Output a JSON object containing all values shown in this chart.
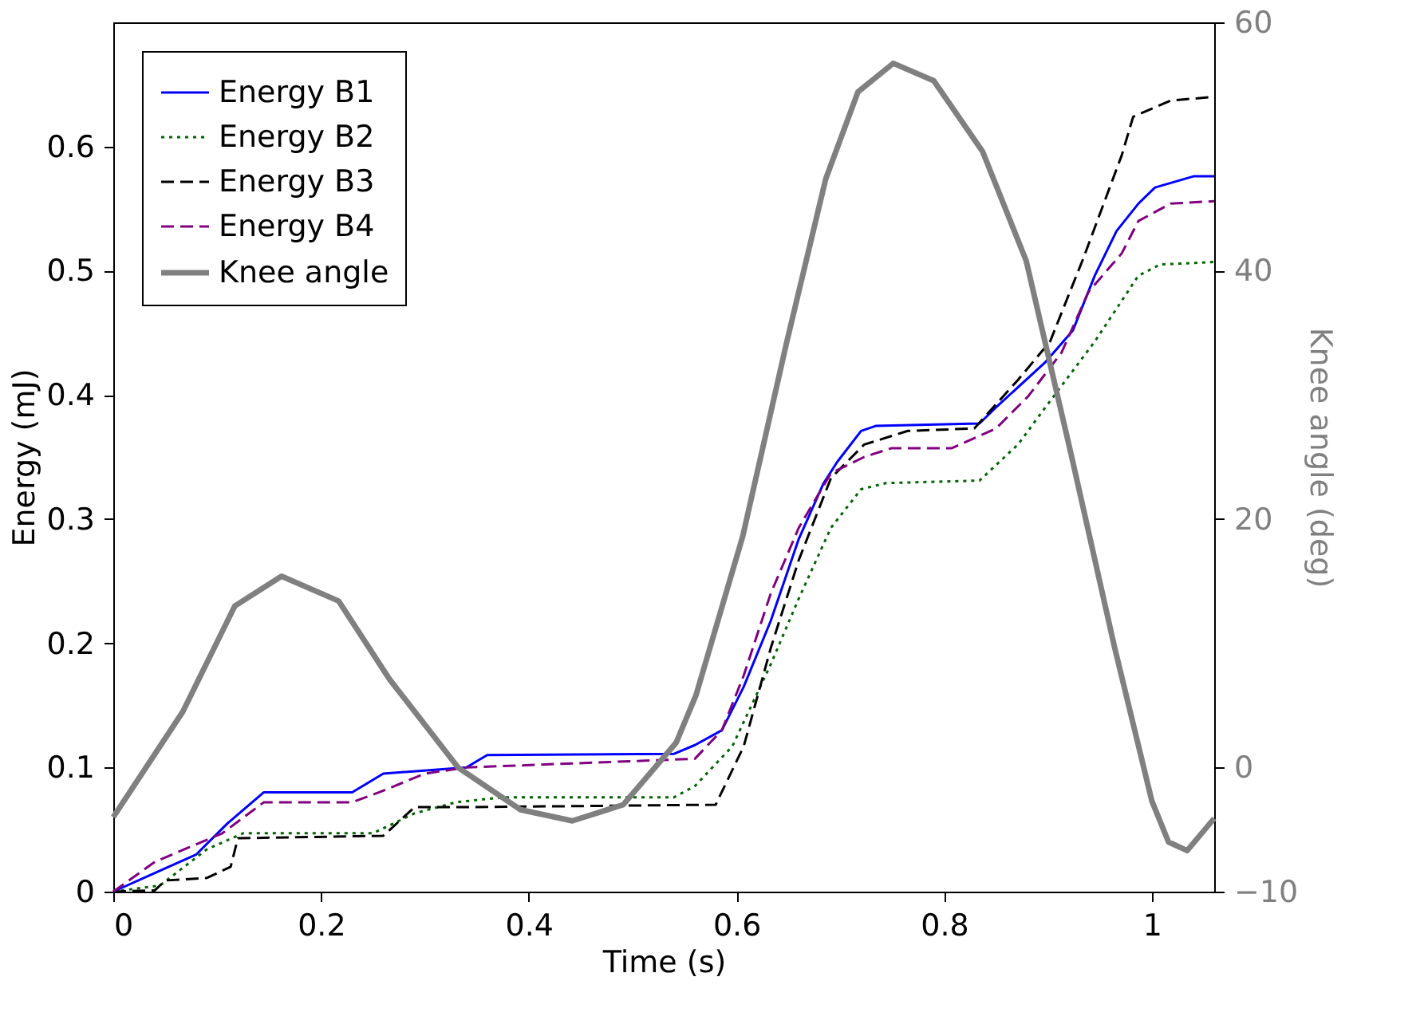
{
  "chart_data": {
    "type": "line",
    "xlabel": "Time (s)",
    "ylabel": "Energy (mJ)",
    "y2label": "Knee angle (deg)",
    "xlim": [
      0,
      1.06
    ],
    "xticks": [
      0,
      0.2,
      0.4,
      0.6,
      0.8,
      1
    ],
    "ylim": [
      0,
      0.7
    ],
    "yticks": [
      0,
      0.1,
      0.2,
      0.3,
      0.4,
      0.5,
      0.6
    ],
    "y2lim": [
      -10,
      60
    ],
    "y2ticks": [
      -10,
      0,
      20,
      40,
      60
    ],
    "grid": false,
    "legend": "top left",
    "marker": "none",
    "series": [
      {
        "name": "Energy B1",
        "color": "#0000ff",
        "line_style": "solid",
        "x": [
          0,
          0.04,
          0.08,
          0.11,
          0.145,
          0.23,
          0.26,
          0.34,
          0.36,
          0.54,
          0.56,
          0.586,
          0.607,
          0.633,
          0.66,
          0.684,
          0.697,
          0.72,
          0.734,
          0.834,
          0.85,
          0.897,
          0.924,
          0.945,
          0.966,
          0.987,
          1.003,
          1.04,
          1.06
        ],
        "values": [
          0,
          0.015,
          0.03,
          0.055,
          0.08,
          0.08,
          0.095,
          0.1,
          0.11,
          0.111,
          0.118,
          0.13,
          0.165,
          0.218,
          0.284,
          0.329,
          0.346,
          0.371,
          0.375,
          0.377,
          0.39,
          0.426,
          0.452,
          0.496,
          0.532,
          0.554,
          0.567,
          0.576,
          0.576
        ]
      },
      {
        "name": "Energy B2",
        "color": "#006400",
        "line_style": "dotted",
        "x": [
          0,
          0.045,
          0.09,
          0.125,
          0.25,
          0.29,
          0.33,
          0.376,
          0.54,
          0.56,
          0.596,
          0.633,
          0.66,
          0.691,
          0.72,
          0.744,
          0.834,
          0.871,
          0.902,
          0.945,
          0.987,
          1.008,
          1.06
        ],
        "values": [
          0,
          0.005,
          0.034,
          0.047,
          0.047,
          0.063,
          0.072,
          0.076,
          0.076,
          0.085,
          0.117,
          0.183,
          0.236,
          0.293,
          0.324,
          0.329,
          0.331,
          0.36,
          0.395,
          0.443,
          0.496,
          0.505,
          0.507
        ]
      },
      {
        "name": "Energy B3",
        "color": "#000000",
        "line_style": "dashed",
        "x": [
          0,
          0.04,
          0.05,
          0.09,
          0.113,
          0.12,
          0.26,
          0.29,
          0.34,
          0.58,
          0.607,
          0.633,
          0.66,
          0.691,
          0.723,
          0.765,
          0.829,
          0.871,
          0.902,
          0.934,
          0.971,
          0.982,
          1.018,
          1.06
        ],
        "values": [
          0,
          0.001,
          0.009,
          0.011,
          0.02,
          0.043,
          0.045,
          0.068,
          0.068,
          0.07,
          0.117,
          0.196,
          0.267,
          0.333,
          0.36,
          0.371,
          0.373,
          0.412,
          0.443,
          0.51,
          0.593,
          0.624,
          0.637,
          0.64
        ]
      },
      {
        "name": "Energy B4",
        "color": "#800080",
        "line_style": "dashed",
        "x": [
          0,
          0.04,
          0.105,
          0.145,
          0.23,
          0.256,
          0.3,
          0.34,
          0.56,
          0.586,
          0.607,
          0.633,
          0.66,
          0.691,
          0.723,
          0.749,
          0.807,
          0.85,
          0.881,
          0.913,
          0.939,
          0.971,
          0.987,
          1.018,
          1.06
        ],
        "values": [
          0,
          0.024,
          0.047,
          0.072,
          0.072,
          0.08,
          0.095,
          0.1,
          0.107,
          0.13,
          0.174,
          0.24,
          0.293,
          0.337,
          0.35,
          0.357,
          0.357,
          0.373,
          0.399,
          0.434,
          0.483,
          0.514,
          0.54,
          0.554,
          0.556
        ]
      },
      {
        "name": "Knee angle",
        "color": "#808080",
        "line_style": "solid",
        "axis": "y2",
        "x": [
          0,
          0.067,
          0.117,
          0.162,
          0.217,
          0.266,
          0.332,
          0.392,
          0.442,
          0.491,
          0.542,
          0.561,
          0.606,
          0.648,
          0.686,
          0.717,
          0.751,
          0.79,
          0.837,
          0.879,
          0.922,
          0.964,
          1.0,
          1.016,
          1.034,
          1.06
        ],
        "values": [
          -4,
          4.5,
          13,
          15.4,
          13.4,
          7.1,
          0,
          -3.4,
          -4.3,
          -3,
          2,
          5.8,
          18.6,
          34.1,
          47.4,
          54.4,
          56.7,
          55.3,
          49.6,
          40.8,
          25.3,
          9.7,
          -2.7,
          -6,
          -6.7,
          -4.1
        ]
      }
    ]
  }
}
